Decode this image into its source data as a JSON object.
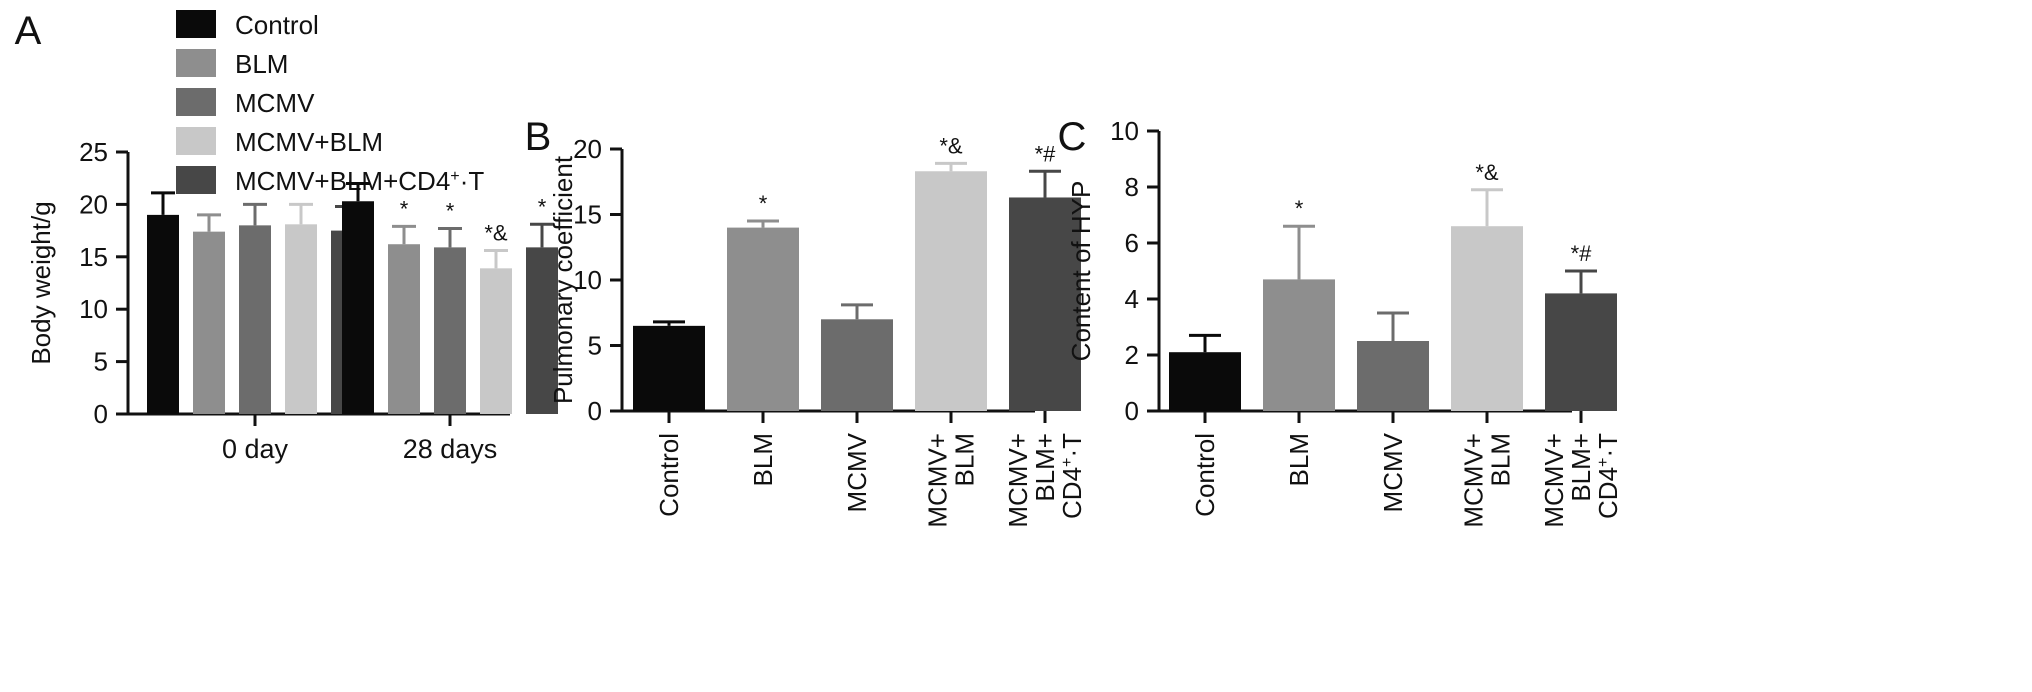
{
  "colors": {
    "Control": "#0a0a0a",
    "BLM": "#8e8e8e",
    "MCMV": "#6c6c6c",
    "MCMV+BLM": "#c8c8c8",
    "MCMV+BLM+CD4+-T": "#474747",
    "axis": "#111111"
  },
  "legend": {
    "entries": [
      "Control",
      "BLM",
      "MCMV",
      "MCMV+BLM",
      "MCMV+BLM+CD4+-T"
    ],
    "last_entry_parts": {
      "base": "MCMV+BLM+CD4",
      "sup": "+",
      "suffix": "-T"
    }
  },
  "chart_data": [
    {
      "panel_label": "A",
      "type": "bar",
      "ylabel": "Body weight/g",
      "xlabel": "",
      "ylim": [
        0,
        25
      ],
      "yticks": [
        0,
        5,
        10,
        15,
        20,
        25
      ],
      "categories": [
        "0 day",
        "28 days"
      ],
      "series": [
        {
          "name": "Control",
          "values": [
            19.0,
            20.3
          ],
          "errors": [
            2.1,
            1.7
          ],
          "sig": [
            "",
            ""
          ]
        },
        {
          "name": "BLM",
          "values": [
            17.4,
            16.2
          ],
          "errors": [
            1.6,
            1.7
          ],
          "sig": [
            "",
            "*"
          ]
        },
        {
          "name": "MCMV",
          "values": [
            18.0,
            15.9
          ],
          "errors": [
            2.0,
            1.8
          ],
          "sig": [
            "",
            "*"
          ]
        },
        {
          "name": "MCMV+BLM",
          "values": [
            18.1,
            13.9
          ],
          "errors": [
            1.9,
            1.7
          ],
          "sig": [
            "",
            "*&"
          ]
        },
        {
          "name": "MCMV+BLM+CD4+-T",
          "values": [
            17.5,
            15.9
          ],
          "errors": [
            2.3,
            2.2
          ],
          "sig": [
            "",
            "*"
          ]
        }
      ],
      "grid": false
    },
    {
      "panel_label": "B",
      "type": "bar",
      "ylabel": "Pulmonary coefficient",
      "xlabel": "",
      "ylim": [
        0,
        20
      ],
      "yticks": [
        0,
        5,
        10,
        15,
        20
      ],
      "categories": [
        {
          "lines": [
            "Control"
          ]
        },
        {
          "lines": [
            "BLM"
          ]
        },
        {
          "lines": [
            "MCMV"
          ]
        },
        {
          "lines": [
            "MCMV+",
            "BLM"
          ]
        },
        {
          "lines": [
            "MCMV+",
            "BLM+",
            "CD4+-T"
          ]
        }
      ],
      "values": [
        6.5,
        14.0,
        7.0,
        18.3,
        16.3
      ],
      "errors": [
        0.3,
        0.5,
        1.1,
        0.6,
        2.0
      ],
      "sig": [
        "",
        "*",
        "",
        "*&",
        "*#"
      ],
      "grid": false
    },
    {
      "panel_label": "C",
      "type": "bar",
      "ylabel": "Content of HYP",
      "xlabel": "",
      "ylim": [
        0,
        10
      ],
      "yticks": [
        0,
        2,
        4,
        6,
        8,
        10
      ],
      "categories": [
        {
          "lines": [
            "Control"
          ]
        },
        {
          "lines": [
            "BLM"
          ]
        },
        {
          "lines": [
            "MCMV"
          ]
        },
        {
          "lines": [
            "MCMV+",
            "BLM"
          ]
        },
        {
          "lines": [
            "MCMV+",
            "BLM+",
            "CD4+-T"
          ]
        }
      ],
      "values": [
        2.1,
        4.7,
        2.5,
        6.6,
        4.2
      ],
      "errors": [
        0.6,
        1.9,
        1.0,
        1.3,
        0.8
      ],
      "sig": [
        "",
        "*",
        "",
        "*&",
        "*#"
      ],
      "grid": false
    }
  ]
}
